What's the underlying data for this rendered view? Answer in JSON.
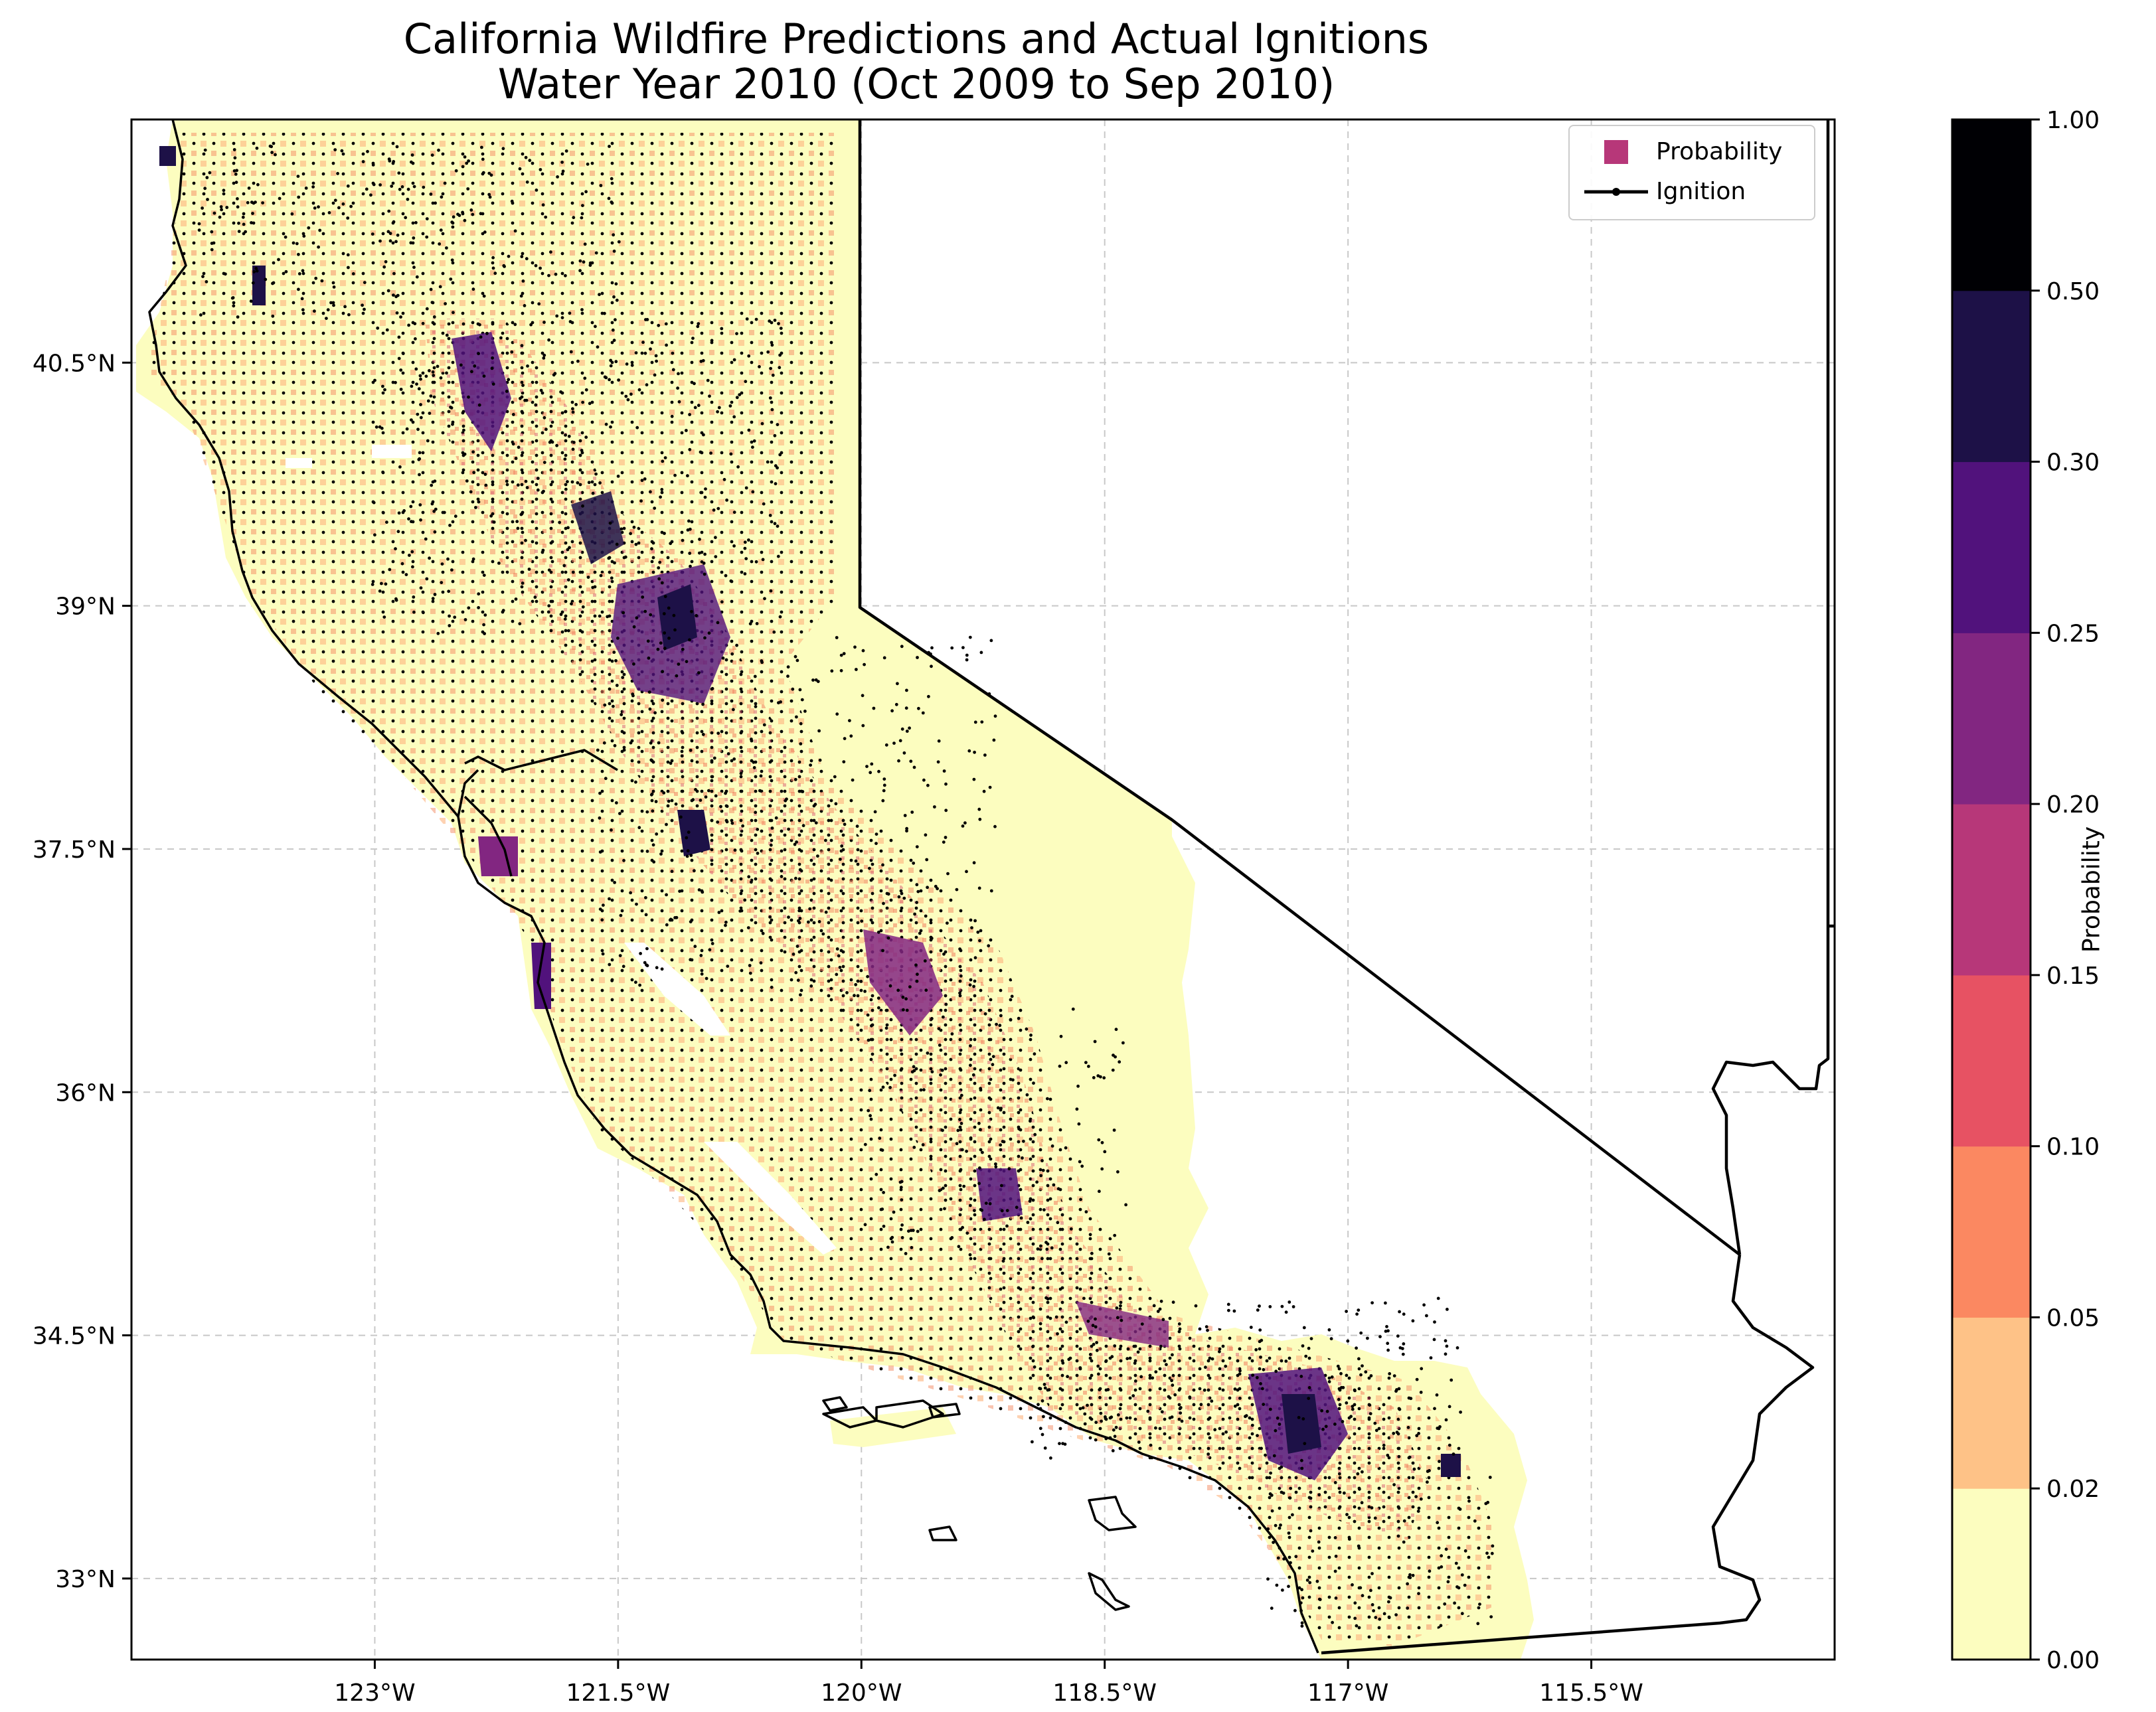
{
  "title": {
    "line1": "California Wildfire Predictions and Actual Ignitions",
    "line2": "Water Year 2010 (Oct 2009 to Sep 2010)"
  },
  "map": {
    "lon_range": [
      -124.5,
      -114.0
    ],
    "lat_range": [
      32.5,
      42.0
    ],
    "x_ticks": [
      {
        "value": -123.0,
        "label": "123°W"
      },
      {
        "value": -121.5,
        "label": "121.5°W"
      },
      {
        "value": -120.0,
        "label": "120°W"
      },
      {
        "value": -118.5,
        "label": "118.5°W"
      },
      {
        "value": -117.0,
        "label": "117°W"
      },
      {
        "value": -115.5,
        "label": "115.5°W"
      }
    ],
    "y_ticks": [
      {
        "value": 33.0,
        "label": "33°N"
      },
      {
        "value": 34.5,
        "label": "34.5°N"
      },
      {
        "value": 36.0,
        "label": "36°N"
      },
      {
        "value": 37.5,
        "label": "37.5°N"
      },
      {
        "value": 39.0,
        "label": "39°N"
      },
      {
        "value": 40.5,
        "label": "40.5°N"
      }
    ],
    "gridlines": true,
    "border_color": "#000000"
  },
  "legend": {
    "placement": "top-right",
    "items": [
      {
        "label": "Probability",
        "marker": "square",
        "color": "#b73779"
      },
      {
        "label": "Ignition",
        "marker": "line-dot",
        "color": "#000000"
      }
    ]
  },
  "colorbar": {
    "label": "Probability",
    "boundaries": [
      0.0,
      0.02,
      0.05,
      0.1,
      0.15,
      0.2,
      0.25,
      0.3,
      0.5,
      1.0
    ],
    "tick_labels": [
      "0.00",
      "0.02",
      "0.05",
      "0.10",
      "0.15",
      "0.20",
      "0.25",
      "0.30",
      "0.50",
      "1.00"
    ],
    "colors": [
      "#fcfdbf",
      "#fec287",
      "#fb8861",
      "#e75263",
      "#b73779",
      "#822681",
      "#51127c",
      "#1d1147",
      "#000004"
    ]
  }
}
